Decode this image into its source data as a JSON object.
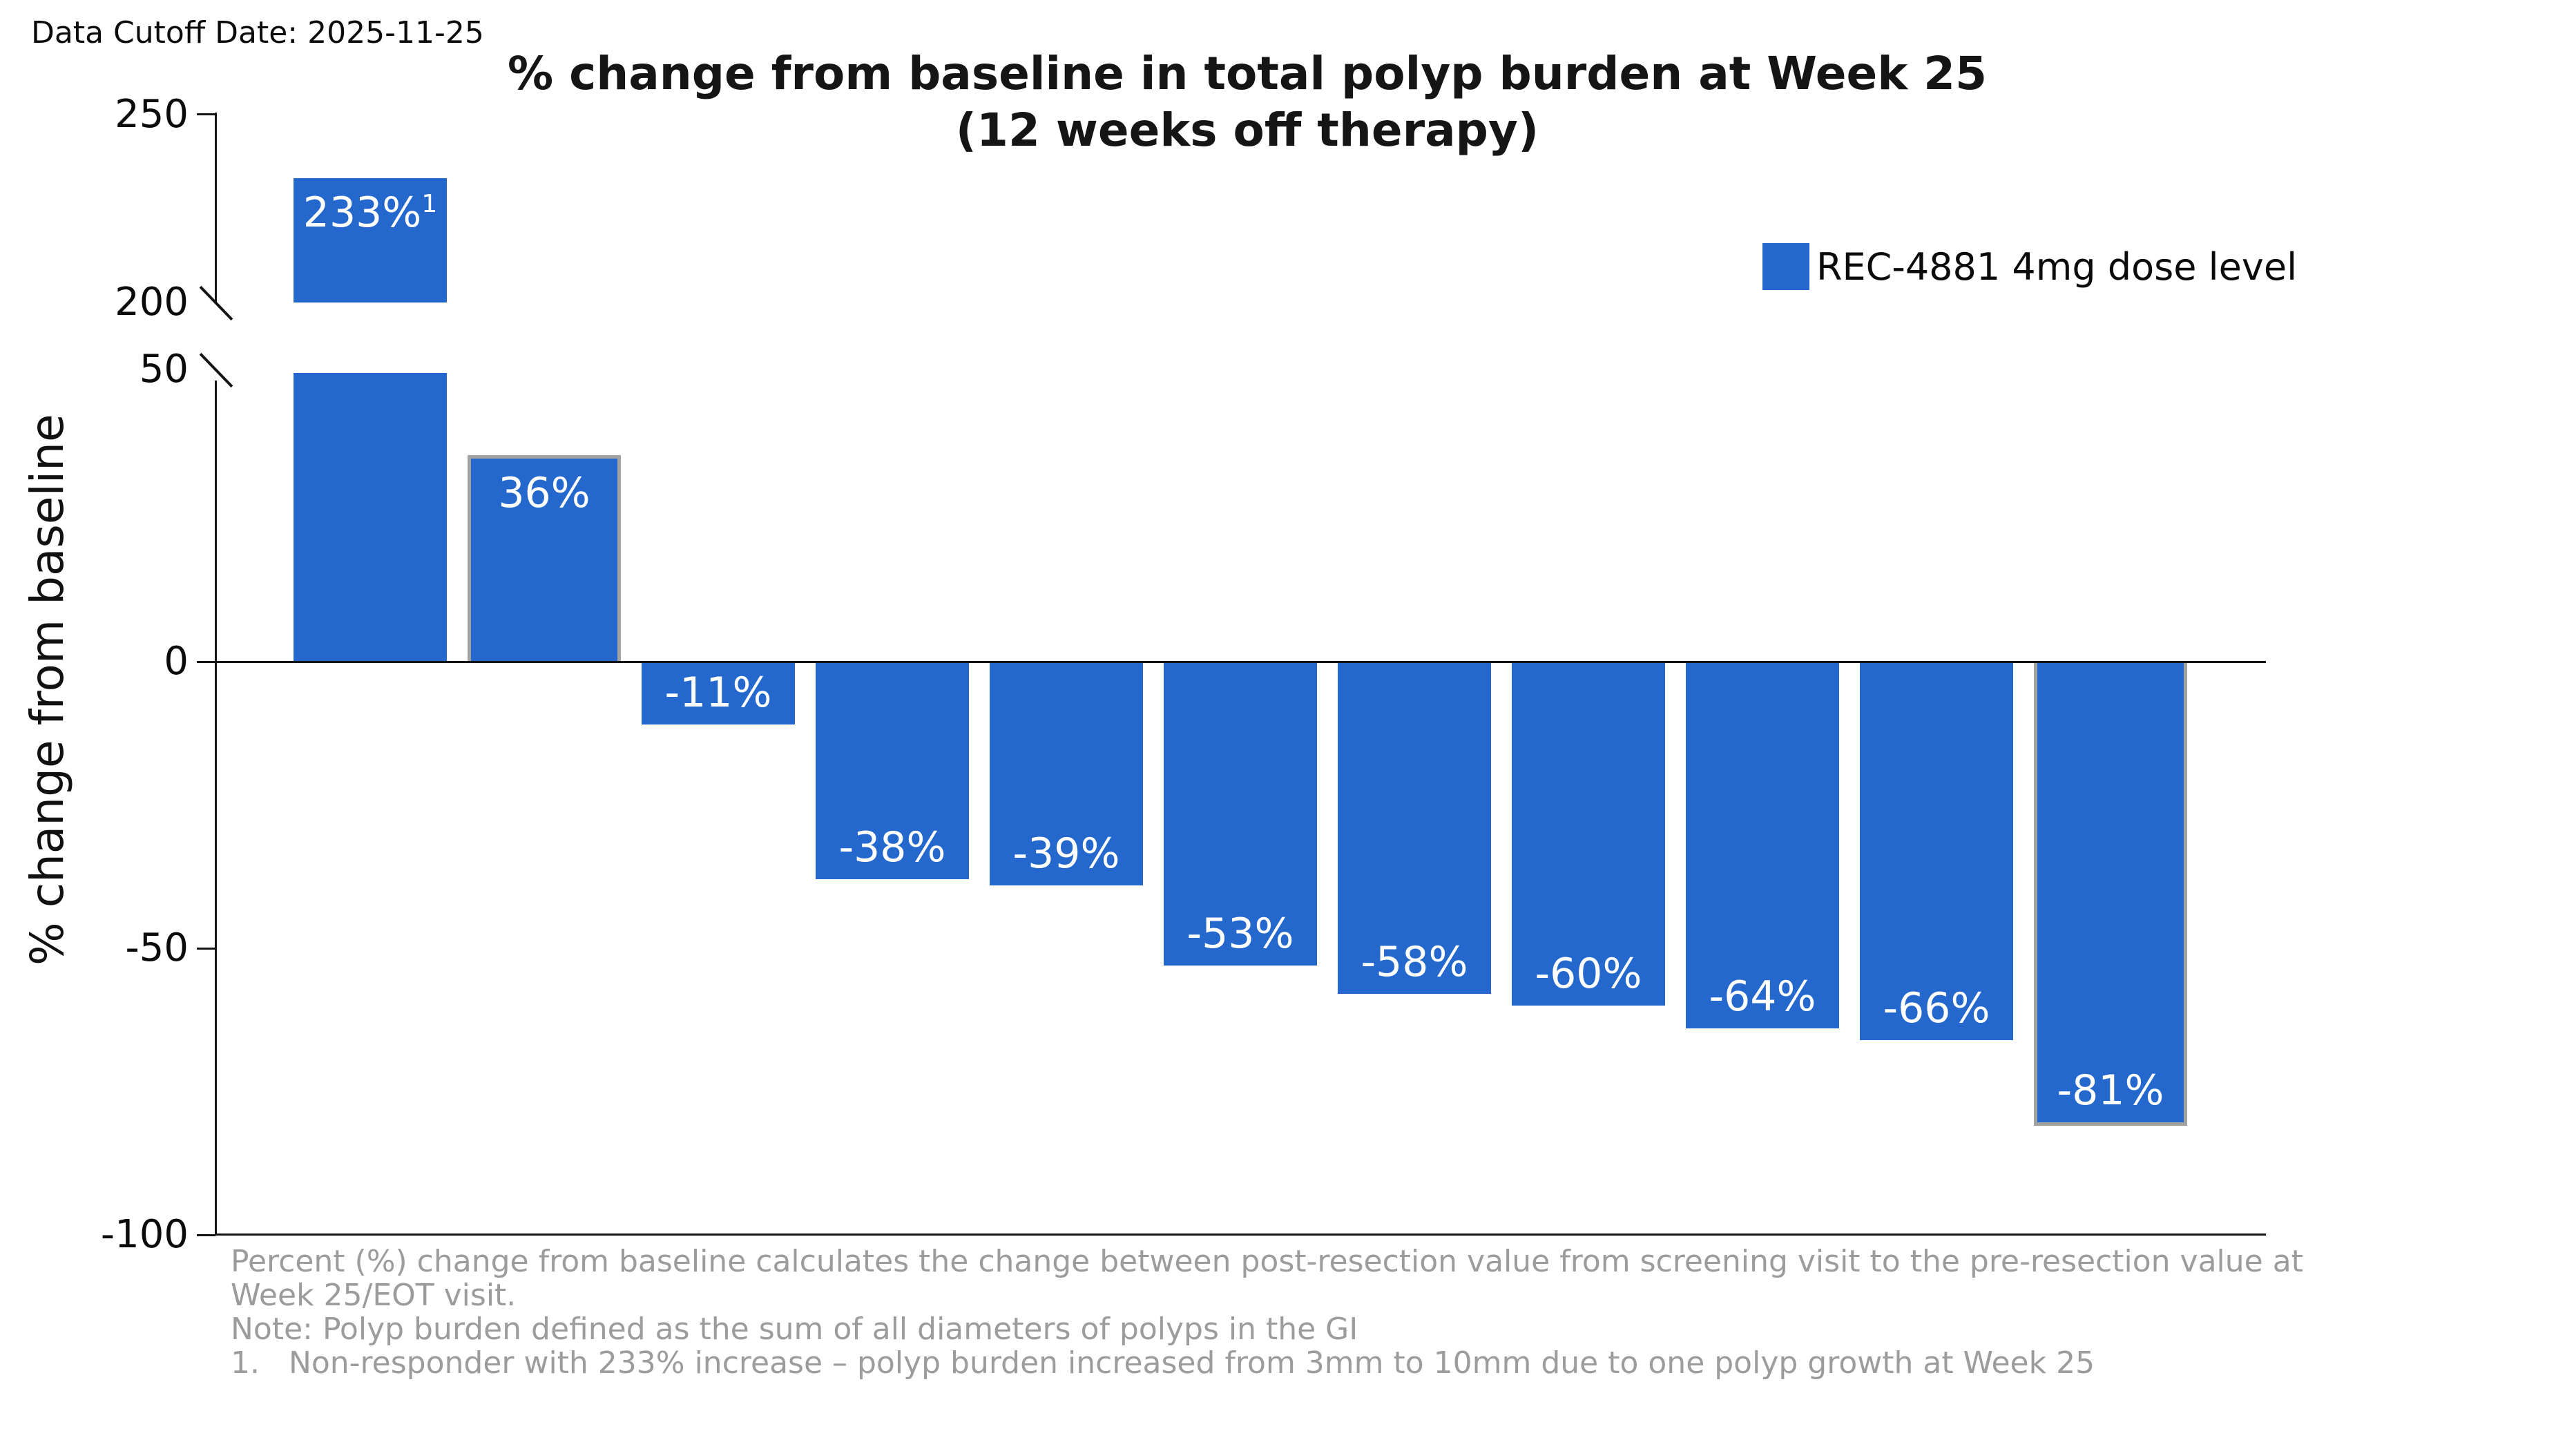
{
  "data_cutoff": "Data Cutoff Date: 2025-11-25",
  "title": "% change from baseline in total polyp burden at Week 25",
  "subtitle": "(12 weeks off therapy)",
  "y_axis_label": "% change from baseline",
  "legend": {
    "label": "REC-4881 4mg dose level",
    "color": "#2568cd"
  },
  "colors": {
    "bar": "#2568cd",
    "bar_outline": "#a2a2a2",
    "axis": "#141414",
    "footnote_text": "#9c9c9c",
    "bar_label_text": "#ffffff"
  },
  "chart_data": {
    "type": "bar",
    "title": "% change from baseline in total polyp burden at Week 25 (12 weeks off therapy)",
    "xlabel": "",
    "ylabel": "% change from baseline",
    "legend_entries": [
      "REC-4881 4mg dose level"
    ],
    "legend_position": "upper right",
    "grid": false,
    "axis_break": true,
    "upper_axis_range": [
      200,
      250
    ],
    "lower_axis_range": [
      -100,
      50
    ],
    "upper_axis_ticks": [
      {
        "label": "250",
        "value": 250,
        "tick_mark": true
      },
      {
        "label": "200",
        "value": 200,
        "tick_mark": false
      }
    ],
    "lower_axis_ticks": [
      {
        "label": "50",
        "value": 50,
        "tick_mark": false
      },
      {
        "label": "0",
        "value": 0,
        "tick_mark": true
      },
      {
        "label": "-50",
        "value": -50,
        "tick_mark": true
      },
      {
        "label": "-100",
        "value": -100,
        "tick_mark": true
      }
    ],
    "series": [
      {
        "name": "REC-4881 4mg dose level",
        "values": [
          233,
          36,
          -11,
          -38,
          -39,
          -53,
          -58,
          -60,
          -64,
          -66,
          -81
        ]
      }
    ],
    "bar_labels": [
      "233%",
      "36%",
      "-11%",
      "-38%",
      "-39%",
      "-53%",
      "-58%",
      "-60%",
      "-64%",
      "-66%",
      "-81%"
    ],
    "bar_label_superscripts": [
      "1",
      "",
      "",
      "",
      "",
      "",
      "",
      "",
      "",
      "",
      ""
    ],
    "outlined_bars": [
      false,
      true,
      false,
      false,
      false,
      false,
      false,
      false,
      false,
      false,
      true
    ]
  },
  "footnotes": {
    "lines": [
      "Percent (%) change from baseline calculates the change between post-resection value from screening visit to the pre-resection value at",
      "Week 25/EOT visit.",
      "Note: Polyp burden defined as the sum of all diameters of polyps in the GI",
      "1.   Non-responder with 233% increase – polyp burden increased from 3mm to 10mm due to one polyp growth at Week 25"
    ]
  }
}
